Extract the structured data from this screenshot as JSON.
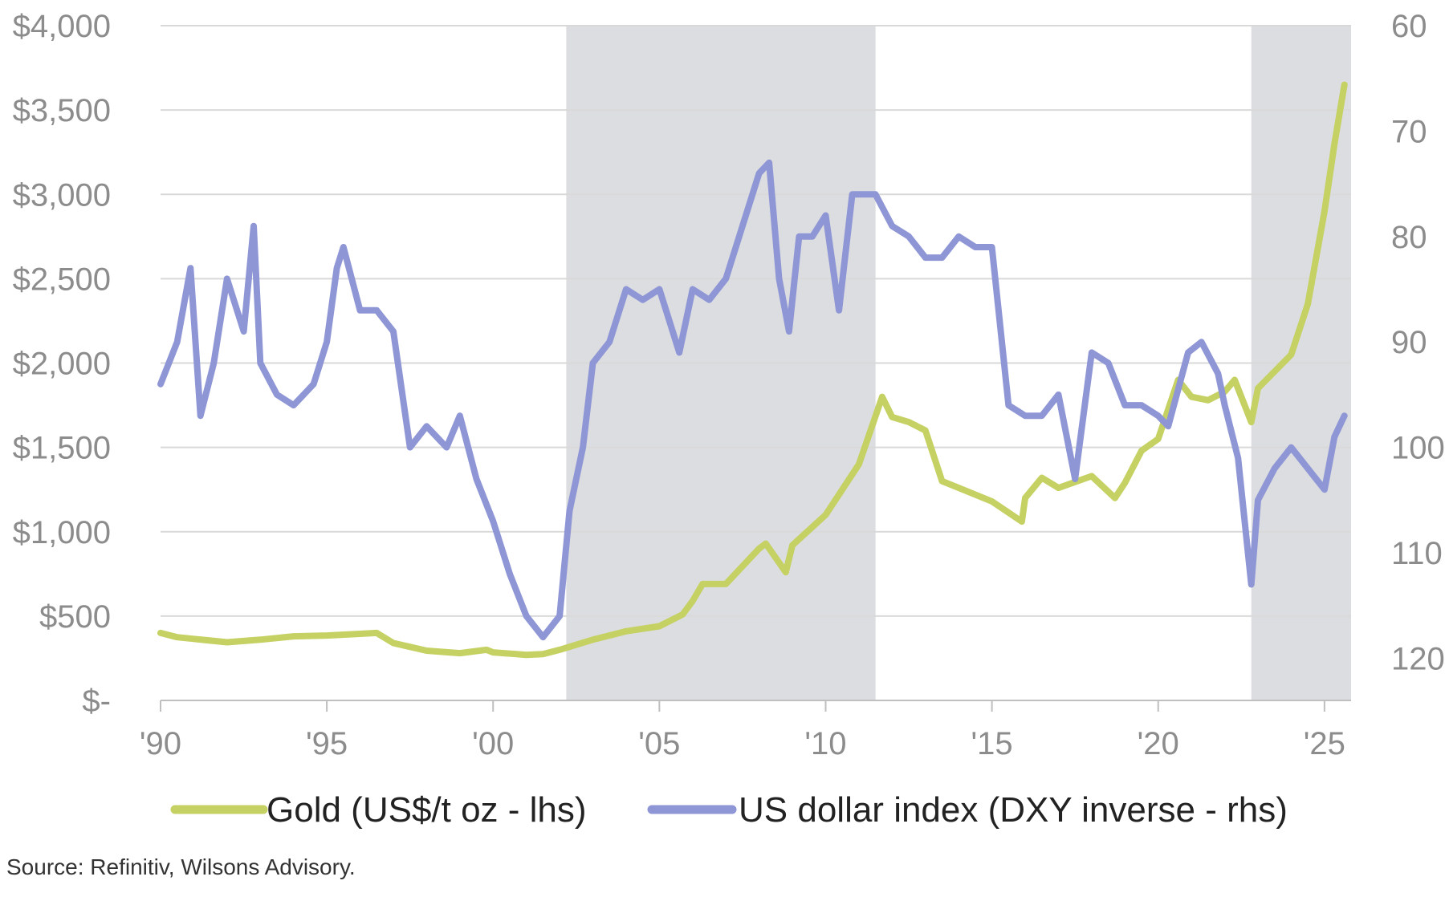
{
  "chart_data": {
    "type": "line",
    "title": "",
    "xlabel": "",
    "ylabel_left": "",
    "ylabel_right": "",
    "x_ticks": [
      {
        "year": 1990,
        "label": "'90"
      },
      {
        "year": 1995,
        "label": "'95"
      },
      {
        "year": 2000,
        "label": "'00"
      },
      {
        "year": 2005,
        "label": "'05"
      },
      {
        "year": 2010,
        "label": "'10"
      },
      {
        "year": 2015,
        "label": "'15"
      },
      {
        "year": 2020,
        "label": "'20"
      },
      {
        "year": 2025,
        "label": "'25"
      }
    ],
    "xlim": [
      1990,
      2025.8
    ],
    "left_axis": {
      "ylim": [
        0,
        4000
      ],
      "ticks": [
        {
          "value": 0,
          "label": "$-"
        },
        {
          "value": 500,
          "label": "$500"
        },
        {
          "value": 1000,
          "label": "$1,000"
        },
        {
          "value": 1500,
          "label": "$1,500"
        },
        {
          "value": 2000,
          "label": "$2,000"
        },
        {
          "value": 2500,
          "label": "$2,500"
        },
        {
          "value": 3000,
          "label": "$3,000"
        },
        {
          "value": 3500,
          "label": "$3,500"
        },
        {
          "value": 4000,
          "label": "$4,000"
        }
      ]
    },
    "right_axis": {
      "inverted": true,
      "ylim": [
        60,
        124
      ],
      "ticks": [
        {
          "value": 60,
          "label": "60"
        },
        {
          "value": 70,
          "label": "70"
        },
        {
          "value": 80,
          "label": "80"
        },
        {
          "value": 90,
          "label": "90"
        },
        {
          "value": 100,
          "label": "100"
        },
        {
          "value": 110,
          "label": "110"
        },
        {
          "value": 120,
          "label": "120"
        }
      ]
    },
    "shaded_periods": [
      {
        "start": 2002.2,
        "end": 2011.5
      },
      {
        "start": 2022.8,
        "end": 2025.8
      }
    ],
    "series": [
      {
        "name": "Gold (US$/t oz - lhs)",
        "axis": "left",
        "color": "#c5d162",
        "x": [
          1990,
          1990.5,
          1991,
          1992,
          1993,
          1994,
          1995,
          1996,
          1996.5,
          1997,
          1998,
          1999,
          1999.8,
          2000,
          2001,
          2001.5,
          2002,
          2003,
          2004,
          2005,
          2005.7,
          2006,
          2006.3,
          2007,
          2008,
          2008.2,
          2008.8,
          2009,
          2010,
          2011,
          2011.7,
          2012,
          2012.5,
          2013,
          2013.5,
          2014,
          2015,
          2015.9,
          2016,
          2016.5,
          2017,
          2018,
          2018.7,
          2019,
          2019.5,
          2020,
          2020.6,
          2021,
          2021.5,
          2022,
          2022.3,
          2022.8,
          2023,
          2023.5,
          2024,
          2024.5,
          2025,
          2025.3,
          2025.6
        ],
        "values": [
          400,
          375,
          365,
          345,
          360,
          380,
          385,
          395,
          400,
          340,
          295,
          280,
          300,
          285,
          270,
          275,
          300,
          360,
          410,
          440,
          510,
          590,
          690,
          690,
          900,
          930,
          760,
          920,
          1100,
          1400,
          1800,
          1680,
          1650,
          1600,
          1300,
          1260,
          1180,
          1060,
          1200,
          1320,
          1260,
          1330,
          1200,
          1290,
          1480,
          1550,
          1900,
          1800,
          1780,
          1830,
          1900,
          1650,
          1850,
          1950,
          2050,
          2350,
          2900,
          3300,
          3650
        ]
      },
      {
        "name": "US dollar index (DXY inverse - rhs)",
        "axis": "right",
        "color": "#8f96d5",
        "x": [
          1990,
          1990.5,
          1990.9,
          1991.2,
          1991.6,
          1992,
          1992.5,
          1992.8,
          1993,
          1993.5,
          1994,
          1994.6,
          1995,
          1995.3,
          1995.5,
          1996,
          1996.5,
          1997,
          1997.5,
          1998,
          1998.6,
          1999,
          1999.5,
          2000,
          2000.5,
          2001,
          2001.5,
          2002,
          2002.3,
          2002.7,
          2003,
          2003.5,
          2004,
          2004.5,
          2005,
          2005.6,
          2006,
          2006.5,
          2007,
          2007.5,
          2008,
          2008.3,
          2008.6,
          2008.9,
          2009.2,
          2009.6,
          2010,
          2010.4,
          2010.8,
          2011.2,
          2011.5,
          2012,
          2012.5,
          2013,
          2013.5,
          2014,
          2014.5,
          2015,
          2015.5,
          2016,
          2016.5,
          2017,
          2017.5,
          2018,
          2018.5,
          2019,
          2019.5,
          2020,
          2020.3,
          2020.9,
          2021.3,
          2021.8,
          2022,
          2022.4,
          2022.8,
          2023,
          2023.5,
          2024,
          2024.5,
          2025,
          2025.3,
          2025.6
        ],
        "values": [
          94,
          90,
          83,
          97,
          92,
          84,
          89,
          79,
          92,
          95,
          96,
          94,
          90,
          83,
          81,
          87,
          87,
          89,
          100,
          98,
          100,
          97,
          103,
          107,
          112,
          116,
          118,
          116,
          106,
          100,
          92,
          90,
          85,
          86,
          85,
          91,
          85,
          86,
          84,
          79,
          74,
          73,
          84,
          89,
          80,
          80,
          78,
          87,
          76,
          76,
          76,
          79,
          80,
          82,
          82,
          80,
          81,
          81,
          96,
          97,
          97,
          95,
          103,
          91,
          92,
          96,
          96,
          97,
          98,
          91,
          90,
          93,
          96,
          101,
          113,
          105,
          102,
          100,
          102,
          104,
          99,
          97
        ]
      }
    ],
    "legend_position": "bottom",
    "grid": true
  },
  "legend": {
    "gold_label": "Gold (US$/t oz - lhs)",
    "dxy_label": "US dollar index (DXY inverse - rhs)"
  },
  "source": "Source: Refinitiv, Wilsons Advisory."
}
